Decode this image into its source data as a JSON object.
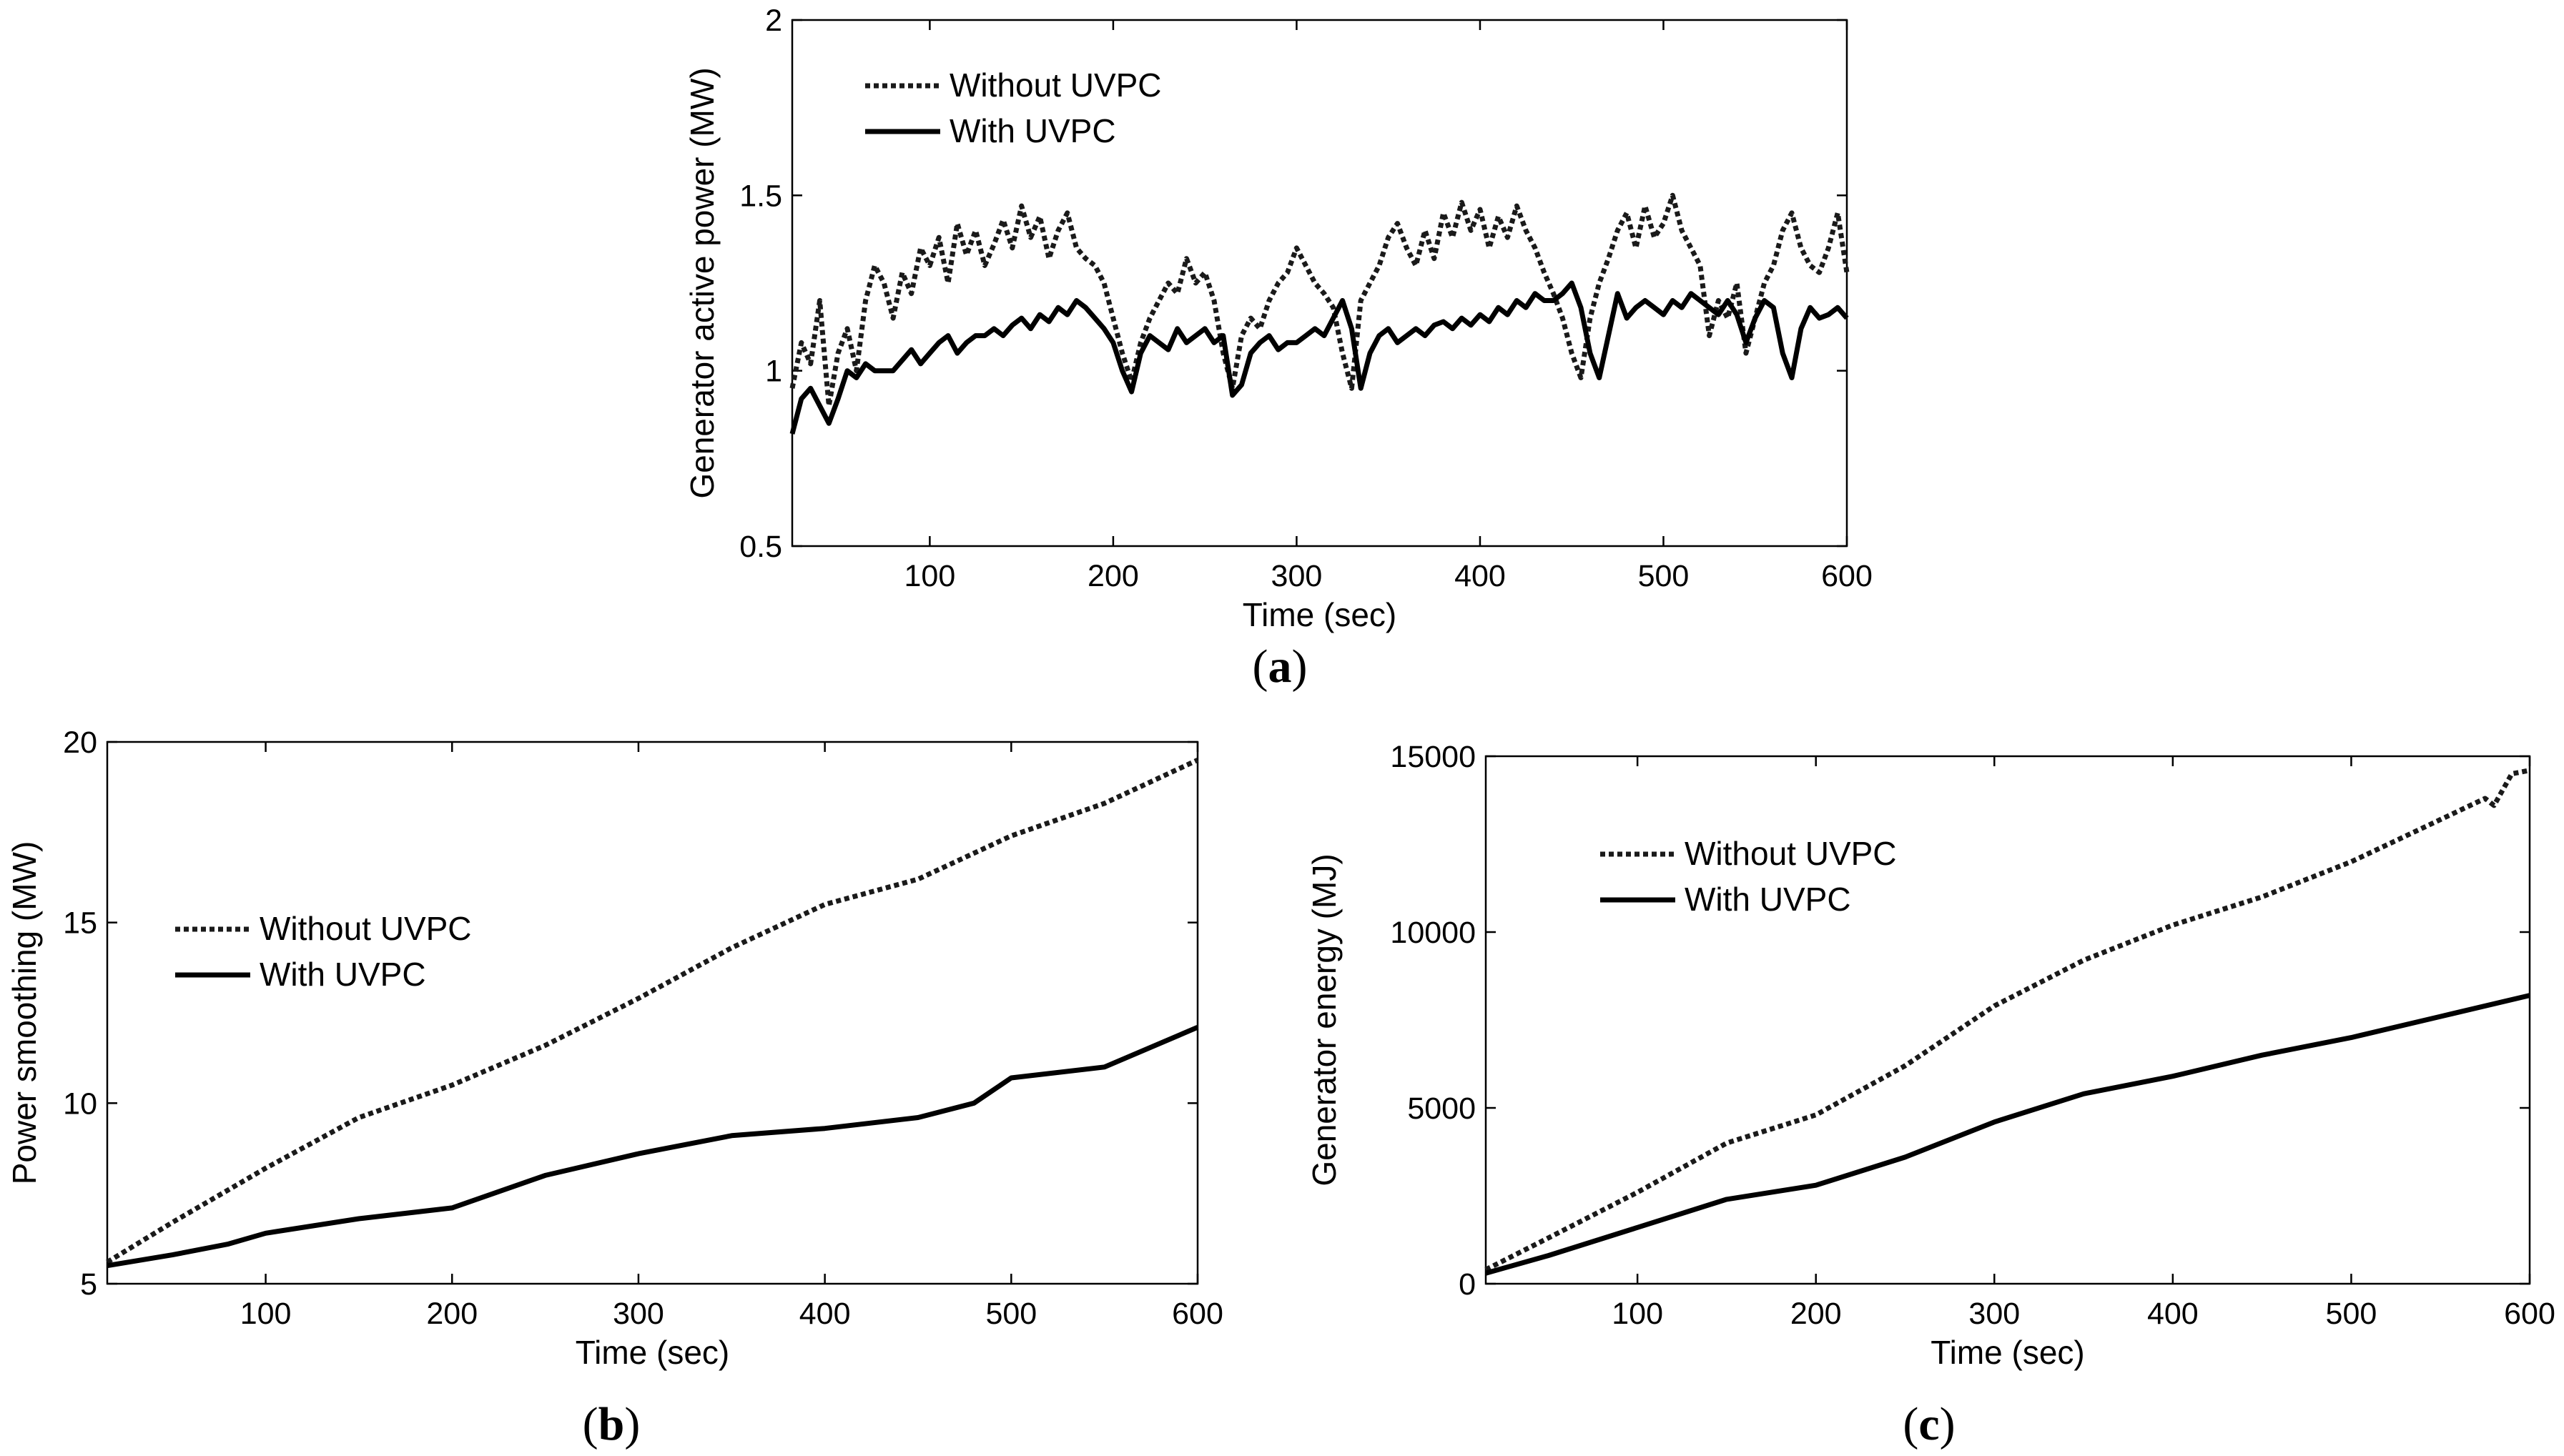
{
  "figure": {
    "captions": [
      {
        "open": "(",
        "letter": "a",
        "close": ")"
      },
      {
        "open": "(",
        "letter": "b",
        "close": ")"
      },
      {
        "open": "(",
        "letter": "c",
        "close": ")"
      }
    ]
  },
  "colors": {
    "axis": "#000000",
    "without_line": "#1a1a1a",
    "with_line": "#000000",
    "background": "#ffffff"
  },
  "chart_data": [
    {
      "id": "a",
      "type": "line",
      "title": "",
      "xlabel": "Time (sec)",
      "ylabel": "Generator active power (MW)",
      "xlim": [
        25,
        600
      ],
      "ylim": [
        0.5,
        2
      ],
      "xticks": [
        100,
        200,
        300,
        400,
        500,
        600
      ],
      "xtick_labels": [
        "100",
        "200",
        "300",
        "400",
        "500",
        "600"
      ],
      "yticks": [
        0.5,
        1,
        1.5,
        2
      ],
      "ytick_labels": [
        "0.5",
        "1",
        "1.5",
        "2"
      ],
      "grid": false,
      "legend_position": "top-left",
      "legend": [
        "Without UVPC",
        "With UVPC"
      ],
      "series": [
        {
          "name": "Without UVPC",
          "style": "dotted",
          "x": [
            25,
            30,
            35,
            40,
            45,
            50,
            55,
            60,
            65,
            70,
            75,
            80,
            85,
            90,
            95,
            100,
            105,
            110,
            115,
            120,
            125,
            130,
            135,
            140,
            145,
            150,
            155,
            160,
            165,
            170,
            175,
            180,
            185,
            190,
            195,
            200,
            205,
            210,
            215,
            220,
            225,
            230,
            235,
            240,
            245,
            250,
            255,
            260,
            265,
            270,
            275,
            280,
            285,
            290,
            295,
            300,
            305,
            310,
            315,
            320,
            325,
            330,
            335,
            340,
            345,
            350,
            355,
            360,
            365,
            370,
            375,
            380,
            385,
            390,
            395,
            400,
            405,
            410,
            415,
            420,
            425,
            430,
            435,
            440,
            445,
            450,
            455,
            460,
            465,
            470,
            475,
            480,
            485,
            490,
            495,
            500,
            505,
            510,
            515,
            520,
            525,
            530,
            535,
            540,
            545,
            550,
            555,
            560,
            565,
            570,
            575,
            580,
            585,
            590,
            595,
            600
          ],
          "values": [
            0.95,
            1.08,
            1.02,
            1.2,
            0.9,
            1.05,
            1.12,
            1.0,
            1.2,
            1.3,
            1.25,
            1.15,
            1.28,
            1.22,
            1.35,
            1.3,
            1.38,
            1.25,
            1.42,
            1.33,
            1.4,
            1.3,
            1.36,
            1.43,
            1.35,
            1.47,
            1.38,
            1.44,
            1.32,
            1.4,
            1.45,
            1.35,
            1.32,
            1.3,
            1.25,
            1.15,
            1.05,
            0.97,
            1.08,
            1.15,
            1.2,
            1.25,
            1.22,
            1.32,
            1.25,
            1.28,
            1.2,
            1.05,
            0.95,
            1.1,
            1.15,
            1.12,
            1.2,
            1.25,
            1.28,
            1.35,
            1.3,
            1.25,
            1.22,
            1.18,
            1.05,
            0.95,
            1.2,
            1.25,
            1.3,
            1.38,
            1.42,
            1.35,
            1.3,
            1.4,
            1.32,
            1.45,
            1.38,
            1.48,
            1.4,
            1.46,
            1.35,
            1.44,
            1.38,
            1.47,
            1.4,
            1.35,
            1.28,
            1.22,
            1.15,
            1.05,
            0.98,
            1.15,
            1.25,
            1.32,
            1.4,
            1.45,
            1.35,
            1.47,
            1.38,
            1.42,
            1.5,
            1.4,
            1.35,
            1.3,
            1.1,
            1.2,
            1.15,
            1.25,
            1.05,
            1.15,
            1.25,
            1.3,
            1.4,
            1.45,
            1.35,
            1.3,
            1.28,
            1.35,
            1.45,
            1.28
          ]
        },
        {
          "name": "With UVPC",
          "style": "solid",
          "x": [
            25,
            30,
            35,
            40,
            45,
            50,
            55,
            60,
            65,
            70,
            75,
            80,
            85,
            90,
            95,
            100,
            105,
            110,
            115,
            120,
            125,
            130,
            135,
            140,
            145,
            150,
            155,
            160,
            165,
            170,
            175,
            180,
            185,
            190,
            195,
            200,
            205,
            210,
            215,
            220,
            225,
            230,
            235,
            240,
            245,
            250,
            255,
            260,
            265,
            270,
            275,
            280,
            285,
            290,
            295,
            300,
            305,
            310,
            315,
            320,
            325,
            330,
            335,
            340,
            345,
            350,
            355,
            360,
            365,
            370,
            375,
            380,
            385,
            390,
            395,
            400,
            405,
            410,
            415,
            420,
            425,
            430,
            435,
            440,
            445,
            450,
            455,
            460,
            465,
            470,
            475,
            480,
            485,
            490,
            495,
            500,
            505,
            510,
            515,
            520,
            525,
            530,
            535,
            540,
            545,
            550,
            555,
            560,
            565,
            570,
            575,
            580,
            585,
            590,
            595,
            600
          ],
          "values": [
            0.82,
            0.92,
            0.95,
            0.9,
            0.85,
            0.92,
            1.0,
            0.98,
            1.02,
            1.0,
            1.0,
            1.0,
            1.03,
            1.06,
            1.02,
            1.05,
            1.08,
            1.1,
            1.05,
            1.08,
            1.1,
            1.1,
            1.12,
            1.1,
            1.13,
            1.15,
            1.12,
            1.16,
            1.14,
            1.18,
            1.16,
            1.2,
            1.18,
            1.15,
            1.12,
            1.08,
            1.0,
            0.94,
            1.05,
            1.1,
            1.08,
            1.06,
            1.12,
            1.08,
            1.1,
            1.12,
            1.08,
            1.1,
            0.93,
            0.96,
            1.05,
            1.08,
            1.1,
            1.06,
            1.08,
            1.08,
            1.1,
            1.12,
            1.1,
            1.15,
            1.2,
            1.12,
            0.95,
            1.05,
            1.1,
            1.12,
            1.08,
            1.1,
            1.12,
            1.1,
            1.13,
            1.14,
            1.12,
            1.15,
            1.13,
            1.16,
            1.14,
            1.18,
            1.16,
            1.2,
            1.18,
            1.22,
            1.2,
            1.2,
            1.22,
            1.25,
            1.18,
            1.05,
            0.98,
            1.1,
            1.22,
            1.15,
            1.18,
            1.2,
            1.18,
            1.16,
            1.2,
            1.18,
            1.22,
            1.2,
            1.18,
            1.16,
            1.2,
            1.16,
            1.08,
            1.15,
            1.2,
            1.18,
            1.05,
            0.98,
            1.12,
            1.18,
            1.15,
            1.16,
            1.18,
            1.15
          ]
        }
      ]
    },
    {
      "id": "b",
      "type": "line",
      "title": "",
      "xlabel": "Time (sec)",
      "ylabel": "Power smoothing (MW)",
      "xlim": [
        15,
        600
      ],
      "ylim": [
        5,
        20
      ],
      "xticks": [
        100,
        200,
        300,
        400,
        500,
        600
      ],
      "xtick_labels": [
        "100",
        "200",
        "300",
        "400",
        "500",
        "600"
      ],
      "yticks": [
        5,
        10,
        15,
        20
      ],
      "ytick_labels": [
        "5",
        "10",
        "15",
        "20"
      ],
      "grid": false,
      "legend_position": "center-left",
      "legend": [
        "Without UVPC",
        "With UVPC"
      ],
      "series": [
        {
          "name": "Without UVPC",
          "style": "dotted",
          "x": [
            15,
            50,
            100,
            150,
            200,
            250,
            300,
            350,
            400,
            450,
            500,
            550,
            600
          ],
          "values": [
            5.6,
            6.7,
            8.2,
            9.6,
            10.5,
            11.6,
            12.9,
            14.3,
            15.5,
            16.2,
            17.4,
            18.3,
            19.5
          ]
        },
        {
          "name": "With UVPC",
          "style": "solid",
          "x": [
            15,
            50,
            80,
            100,
            150,
            200,
            250,
            300,
            350,
            400,
            450,
            480,
            500,
            550,
            600
          ],
          "values": [
            5.5,
            5.8,
            6.1,
            6.4,
            6.8,
            7.1,
            8.0,
            8.6,
            9.1,
            9.3,
            9.6,
            10.0,
            10.7,
            11.0,
            12.1
          ]
        }
      ]
    },
    {
      "id": "c",
      "type": "line",
      "title": "",
      "xlabel": "Time (sec)",
      "ylabel": "Generator energy (MJ)",
      "xlim": [
        15,
        600
      ],
      "ylim": [
        0,
        15000
      ],
      "xticks": [
        100,
        200,
        300,
        400,
        500,
        600
      ],
      "xtick_labels": [
        "100",
        "200",
        "300",
        "400",
        "500",
        "600"
      ],
      "yticks": [
        0,
        5000,
        10000,
        15000
      ],
      "ytick_labels": [
        "0",
        "5000",
        "10000",
        "15000"
      ],
      "grid": false,
      "legend_position": "top-left",
      "legend": [
        "Without UVPC",
        "With UVPC"
      ],
      "series": [
        {
          "name": "Without UVPC",
          "style": "dotted",
          "x": [
            15,
            50,
            100,
            150,
            200,
            250,
            300,
            350,
            400,
            450,
            500,
            550,
            575,
            580,
            590,
            600
          ],
          "values": [
            400,
            1300,
            2600,
            4000,
            4800,
            6200,
            7900,
            9200,
            10200,
            11000,
            12000,
            13200,
            13800,
            13600,
            14500,
            14600
          ]
        },
        {
          "name": "With UVPC",
          "style": "solid",
          "x": [
            15,
            50,
            100,
            150,
            200,
            250,
            300,
            350,
            400,
            450,
            500,
            550,
            600
          ],
          "values": [
            300,
            800,
            1600,
            2400,
            2800,
            3600,
            4600,
            5400,
            5900,
            6500,
            7000,
            7600,
            8200
          ]
        }
      ]
    }
  ]
}
